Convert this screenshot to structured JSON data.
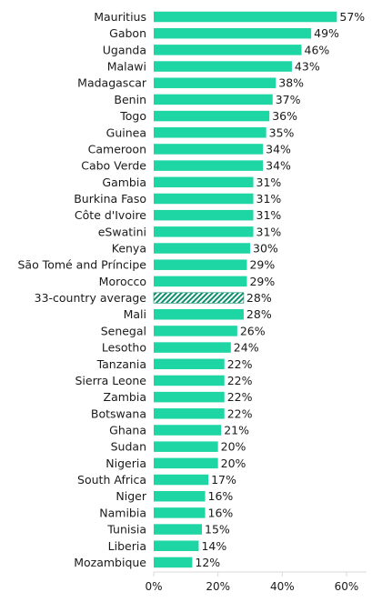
{
  "chart_data": {
    "type": "bar",
    "orientation": "horizontal",
    "categories": [
      "Mauritius",
      "Gabon",
      "Uganda",
      "Malawi",
      "Madagascar",
      "Benin",
      "Togo",
      "Guinea",
      "Cameroon",
      "Cabo Verde",
      "Gambia",
      "Burkina Faso",
      "Côte d'Ivoire",
      "eSwatini",
      "Kenya",
      "São Tomé and Príncipe",
      "Morocco",
      "33-country average",
      "Mali",
      "Senegal",
      "Lesotho",
      "Tanzania",
      "Sierra Leone",
      "Zambia",
      "Botswana",
      "Ghana",
      "Sudan",
      "Nigeria",
      "South Africa",
      "Niger",
      "Namibia",
      "Tunisia",
      "Liberia",
      "Mozambique"
    ],
    "values": [
      57,
      49,
      46,
      43,
      38,
      37,
      36,
      35,
      34,
      34,
      31,
      31,
      31,
      31,
      30,
      29,
      29,
      28,
      28,
      26,
      24,
      22,
      22,
      22,
      22,
      21,
      20,
      20,
      17,
      16,
      16,
      15,
      14,
      12
    ],
    "value_labels": [
      "57%",
      "49%",
      "46%",
      "43%",
      "38%",
      "37%",
      "36%",
      "35%",
      "34%",
      "34%",
      "31%",
      "31%",
      "31%",
      "31%",
      "30%",
      "29%",
      "29%",
      "28%",
      "28%",
      "26%",
      "24%",
      "22%",
      "22%",
      "22%",
      "22%",
      "21%",
      "20%",
      "20%",
      "17%",
      "16%",
      "16%",
      "15%",
      "14%",
      "12%"
    ],
    "highlight_category": "33-country average",
    "xlim": [
      0,
      60
    ],
    "xticks": [
      0,
      20,
      40,
      60
    ],
    "xtick_labels": [
      "0%",
      "20%",
      "40%",
      "60%"
    ],
    "grid": false,
    "colors": {
      "bar": "#1ed6a4",
      "average_hatch": "#0f8f6c",
      "axis": "#d9d9d9",
      "text": "#1a1a1a"
    }
  }
}
